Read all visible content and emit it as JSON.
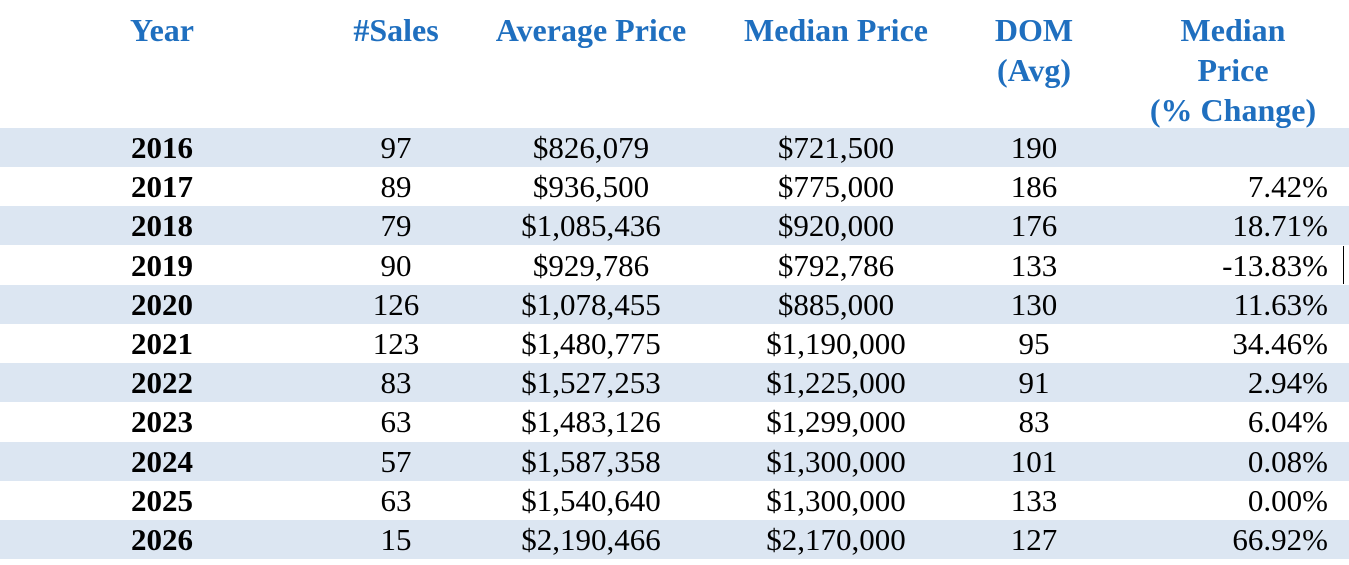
{
  "header": {
    "year": "Year",
    "sales": "#Sales",
    "avg_price": "Average Price",
    "median_price": "Median Price",
    "dom_line1": "DOM",
    "dom_line2": "(Avg)",
    "pct_line1": "Median",
    "pct_line2": "Price",
    "pct_line3": "(% Change)"
  },
  "colors": {
    "header_text": "#1f6fbf",
    "row_shade": "#dce6f2",
    "rule": "#6f8fbf"
  },
  "rows": [
    {
      "year": "2016",
      "sales": "97",
      "avg": "$826,079",
      "median": "$721,500",
      "dom": "190",
      "pct": ""
    },
    {
      "year": "2017",
      "sales": "89",
      "avg": "$936,500",
      "median": "$775,000",
      "dom": "186",
      "pct": "7.42%"
    },
    {
      "year": "2018",
      "sales": "79",
      "avg": "$1,085,436",
      "median": "$920,000",
      "dom": "176",
      "pct": "18.71%"
    },
    {
      "year": "2019",
      "sales": "90",
      "avg": "$929,786",
      "median": "$792,786",
      "dom": "133",
      "pct": "-13.83%"
    },
    {
      "year": "2020",
      "sales": "126",
      "avg": "$1,078,455",
      "median": "$885,000",
      "dom": "130",
      "pct": "11.63%"
    },
    {
      "year": "2021",
      "sales": "123",
      "avg": "$1,480,775",
      "median": "$1,190,000",
      "dom": "95",
      "pct": "34.46%"
    },
    {
      "year": "2022",
      "sales": "83",
      "avg": "$1,527,253",
      "median": "$1,225,000",
      "dom": "91",
      "pct": "2.94%"
    },
    {
      "year": "2023",
      "sales": "63",
      "avg": "$1,483,126",
      "median": "$1,299,000",
      "dom": "83",
      "pct": "6.04%"
    },
    {
      "year": "2024",
      "sales": "57",
      "avg": "$1,587,358",
      "median": "$1,300,000",
      "dom": "101",
      "pct": "0.08%"
    },
    {
      "year": "2025",
      "sales": "63",
      "avg": "$1,540,640",
      "median": "$1,300,000",
      "dom": "133",
      "pct": "0.00%"
    },
    {
      "year": "2026",
      "sales": "15",
      "avg": "$2,190,466",
      "median": "$2,170,000",
      "dom": "127",
      "pct": "66.92%"
    }
  ]
}
